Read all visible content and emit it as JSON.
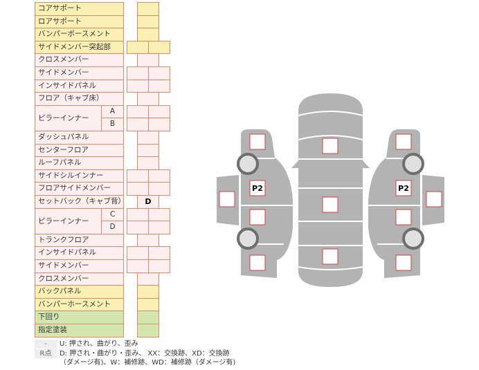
{
  "rows": [
    {
      "label": "コアサポート",
      "color": "Y",
      "cells": "single"
    },
    {
      "label": "ロアサポート",
      "color": "Y",
      "cells": "single"
    },
    {
      "label": "バンパーボースメント",
      "color": "Y",
      "cells": "single"
    },
    {
      "label": "サイドメンバー突起部",
      "color": "Y",
      "cells": "double"
    },
    {
      "label": "クロスメンバー",
      "color": "P",
      "cells": "single"
    },
    {
      "label": "サイドメンバー",
      "color": "P",
      "cells": "double"
    },
    {
      "label": "インサイドパネル",
      "color": "P",
      "cells": "double"
    },
    {
      "label": "フロア（キャブ床）",
      "color": "P",
      "cells": "single"
    },
    {
      "label": "ピラーインナー",
      "color": "P",
      "cells": "double",
      "sub": "A",
      "group": 2
    },
    {
      "label": "",
      "color": "P",
      "cells": "double",
      "sub": "B",
      "grouped": true
    },
    {
      "label": "ダッシュパネル",
      "color": "P",
      "cells": "single"
    },
    {
      "label": "センターフロア",
      "color": "P",
      "cells": "single"
    },
    {
      "label": "ルーフパネル",
      "color": "P",
      "cells": "single"
    },
    {
      "label": "サイドシルインナー",
      "color": "P",
      "cells": "double"
    },
    {
      "label": "フロアサイドメンバー",
      "color": "P",
      "cells": "double"
    },
    {
      "label": "セットバック（キャブ背）",
      "color": "P",
      "cells": "single",
      "value": "D"
    },
    {
      "label": "ピラーインナー",
      "color": "P",
      "cells": "double",
      "sub": "C",
      "group": 2
    },
    {
      "label": "",
      "color": "P",
      "cells": "double",
      "sub": "D",
      "grouped": true
    },
    {
      "label": "トランクフロア",
      "color": "P",
      "cells": "single"
    },
    {
      "label": "インサイドパネル",
      "color": "P",
      "cells": "double"
    },
    {
      "label": "サイドメンバー",
      "color": "P",
      "cells": "double"
    },
    {
      "label": "クロスメンバー",
      "color": "P",
      "cells": "single"
    },
    {
      "label": "バックパネル",
      "color": "Y",
      "cells": "single"
    },
    {
      "label": "バンパーホースメント",
      "color": "Y",
      "cells": "single"
    },
    {
      "label": "下回り",
      "color": "G",
      "cells": "single"
    },
    {
      "label": "指定塗装",
      "color": "G",
      "cells": "single"
    }
  ],
  "legend": [
    {
      "key": "-",
      "text": "U: 押され、曲がり、歪み"
    },
    {
      "key": "R点",
      "text": "D: 押され・曲がり・歪み、 XX：交換跡、XD：交換跡"
    },
    {
      "key": "",
      "text": "（ダメージ有)、W：補修跡、WD：補修跡（ダメージ有)"
    }
  ],
  "diagram": {
    "left_mark": "P2",
    "right_mark": "P2"
  },
  "colors": {
    "yellow": "#faf0b4",
    "pink": "#fdeef0",
    "green": "#d4e6b0",
    "border": "#e08a6a",
    "body": "#b3b3b3",
    "marker": "#d04040"
  }
}
